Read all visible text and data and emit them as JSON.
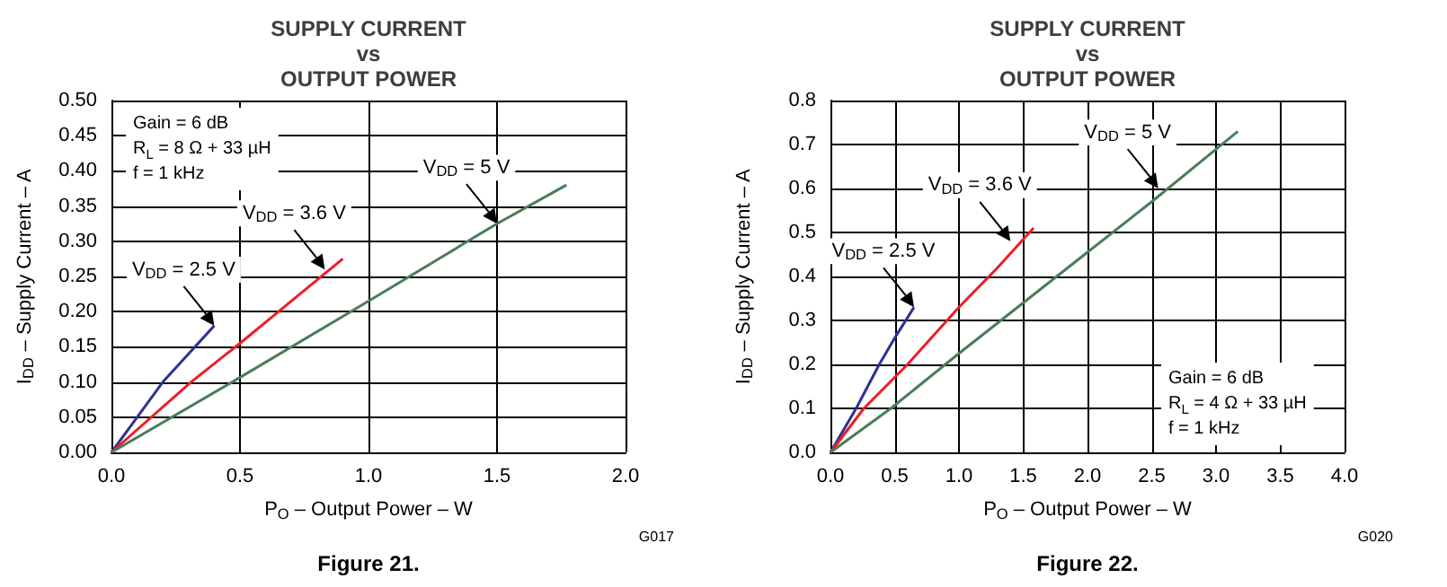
{
  "chart_data": [
    {
      "type": "line",
      "title": "SUPPLY CURRENT\nvs\nOUTPUT POWER",
      "xlabel": "P$_{O}$ – Output Power – W",
      "ylabel": "I$_{DD}$ – Supply Current – A",
      "xlim": [
        0,
        2
      ],
      "ylim": [
        0,
        0.5
      ],
      "xticks": [
        {
          "value": 0,
          "label": "0.0"
        },
        {
          "value": 0.5,
          "label": "0.5"
        },
        {
          "value": 1,
          "label": "1.0"
        },
        {
          "value": 1.5,
          "label": "1.5"
        },
        {
          "value": 2,
          "label": "2.0"
        }
      ],
      "yticks": [
        {
          "value": 0,
          "label": "0.00"
        },
        {
          "value": 0.05,
          "label": "0.05"
        },
        {
          "value": 0.1,
          "label": "0.10"
        },
        {
          "value": 0.15,
          "label": "0.15"
        },
        {
          "value": 0.2,
          "label": "0.20"
        },
        {
          "value": 0.25,
          "label": "0.25"
        },
        {
          "value": 0.3,
          "label": "0.30"
        },
        {
          "value": 0.35,
          "label": "0.35"
        },
        {
          "value": 0.4,
          "label": "0.40"
        },
        {
          "value": 0.45,
          "label": "0.45"
        },
        {
          "value": 0.5,
          "label": "0.50"
        }
      ],
      "grid": true,
      "marker": "none",
      "line_style": "solid",
      "series": [
        {
          "color": "#2e3192",
          "x": [
            0,
            0.1,
            0.2,
            0.3,
            0.4
          ],
          "values": [
            0,
            0.05,
            0.1,
            0.14,
            0.18
          ]
        },
        {
          "color": "#ee1c25",
          "x": [
            0,
            0.31,
            0.5,
            0.7,
            0.9
          ],
          "values": [
            0,
            0.1,
            0.155,
            0.215,
            0.275
          ]
        },
        {
          "color": "#4a7c59",
          "x": [
            0,
            0.47,
            1,
            1.5,
            1.77
          ],
          "values": [
            0,
            0.1,
            0.215,
            0.325,
            0.38
          ]
        }
      ],
      "annotations": [
        {
          "text": "V$_{DD}$ = 2.5 V",
          "x": 0.4,
          "y": 0.18
        },
        {
          "text": "V$_{DD}$ = 3.6 V",
          "x": 0.83,
          "y": 0.26
        },
        {
          "text": "V$_{DD}$ = 5 V",
          "x": 1.5,
          "y": 0.325
        },
        "Gain = 6 dB",
        "R$_{L}$ = 8 Ω + 33 µH",
        "f = 1 kHz",
        "G017",
        "Figure 21."
      ]
    },
    {
      "type": "line",
      "title": "SUPPLY CURRENT\nvs\nOUTPUT POWER",
      "xlabel": "P$_{O}$ – Output Power – W",
      "ylabel": "I$_{DD}$ – Supply Current – A",
      "xlim": [
        0,
        4
      ],
      "ylim": [
        0,
        0.8
      ],
      "xticks": [
        {
          "value": 0,
          "label": "0.0"
        },
        {
          "value": 0.5,
          "label": "0.5"
        },
        {
          "value": 1,
          "label": "1.0"
        },
        {
          "value": 1.5,
          "label": "1.5"
        },
        {
          "value": 2,
          "label": "2.0"
        },
        {
          "value": 2.5,
          "label": "2.5"
        },
        {
          "value": 3,
          "label": "3.0"
        },
        {
          "value": 3.5,
          "label": "3.5"
        },
        {
          "value": 4,
          "label": "4.0"
        }
      ],
      "yticks": [
        {
          "value": 0,
          "label": "0.0"
        },
        {
          "value": 0.1,
          "label": "0.1"
        },
        {
          "value": 0.2,
          "label": "0.2"
        },
        {
          "value": 0.3,
          "label": "0.3"
        },
        {
          "value": 0.4,
          "label": "0.4"
        },
        {
          "value": 0.5,
          "label": "0.5"
        },
        {
          "value": 0.6,
          "label": "0.6"
        },
        {
          "value": 0.7,
          "label": "0.7"
        },
        {
          "value": 0.8,
          "label": "0.8"
        }
      ],
      "grid": true,
      "marker": "none",
      "line_style": "solid",
      "series": [
        {
          "color": "#2e3192",
          "x": [
            0,
            0.2,
            0.38,
            0.5,
            0.65
          ],
          "values": [
            0,
            0.1,
            0.2,
            0.26,
            0.33
          ]
        },
        {
          "color": "#ee1c25",
          "x": [
            0,
            0.26,
            0.6,
            1,
            1.3,
            1.58
          ],
          "values": [
            0,
            0.1,
            0.2,
            0.33,
            0.42,
            0.51
          ]
        },
        {
          "color": "#4a7c59",
          "x": [
            0,
            0.47,
            1,
            2,
            2.5,
            3.17
          ],
          "values": [
            0,
            0.1,
            0.225,
            0.455,
            0.57,
            0.73
          ]
        }
      ],
      "annotations": [
        {
          "text": "V$_{DD}$ = 2.5 V",
          "x": 0.65,
          "y": 0.33
        },
        {
          "text": "V$_{DD}$ = 3.6 V",
          "x": 1.4,
          "y": 0.48
        },
        {
          "text": "V$_{DD}$ = 5 V",
          "x": 2.55,
          "y": 0.6
        },
        "Gain = 6 dB",
        "R$_{L}$ = 4 Ω + 33 µH",
        "f = 1 kHz",
        "G020",
        "Figure 22."
      ]
    }
  ]
}
